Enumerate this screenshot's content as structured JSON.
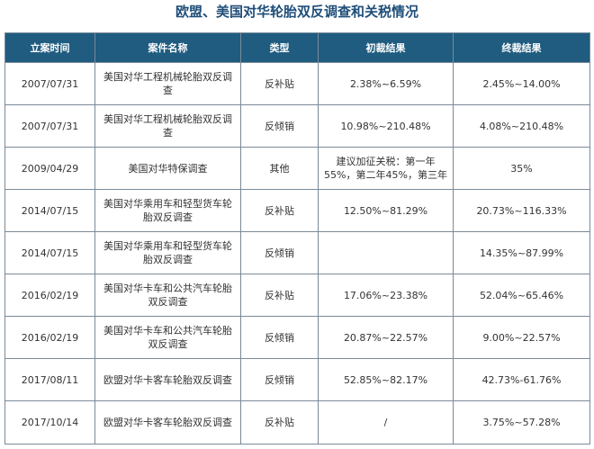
{
  "title": "欧盟、美国对华轮胎双反调查和关税情况",
  "columns": [
    "立案时间",
    "案件名称",
    "类型",
    "初裁结果",
    "终裁结果"
  ],
  "rows": [
    {
      "date": "2007/07/31",
      "case": "美国对华工程机械轮胎双反调查",
      "type": "反补贴",
      "initial": "2.38%~6.59%",
      "final": "2.45%~14.00%"
    },
    {
      "date": "2007/07/31",
      "case": "美国对华工程机械轮胎双反调查",
      "type": "反倾销",
      "initial": "10.98%~210.48%",
      "final": "4.08%~210.48%"
    },
    {
      "date": "2009/04/29",
      "case": "美国对华特保调查",
      "type": "其他",
      "initial": "建议加征关税：第一年55%，第二年45%，第三年",
      "final": "35%"
    },
    {
      "date": "2014/07/15",
      "case": "美国对华乘用车和轻型货车轮胎双反调查",
      "type": "反补贴",
      "initial": "12.50%~81.29%",
      "final": "20.73%~116.33%"
    },
    {
      "date": "2014/07/15",
      "case": "美国对华乘用车和轻型货车轮胎双反调查",
      "type": "反倾销",
      "initial": "",
      "final": "14.35%~87.99%"
    },
    {
      "date": "2016/02/19",
      "case": "美国对华卡车和公共汽车轮胎双反调查",
      "type": "反补贴",
      "initial": "17.06%~23.38%",
      "final": "52.04%~65.46%"
    },
    {
      "date": "2016/02/19",
      "case": "美国对华卡车和公共汽车轮胎双反调查",
      "type": "反倾销",
      "initial": "20.87%~22.57%",
      "final": "9.00%~22.57%"
    },
    {
      "date": "2017/08/11",
      "case": "欧盟对华卡客车轮胎双反调查",
      "type": "反倾销",
      "initial": "52.85%~82.17%",
      "final": "42.73%-61.76%"
    },
    {
      "date": "2017/10/14",
      "case": "欧盟对华卡客车轮胎双反调查",
      "type": "反补贴",
      "initial": "/",
      "final": "3.75%~57.28%"
    }
  ]
}
